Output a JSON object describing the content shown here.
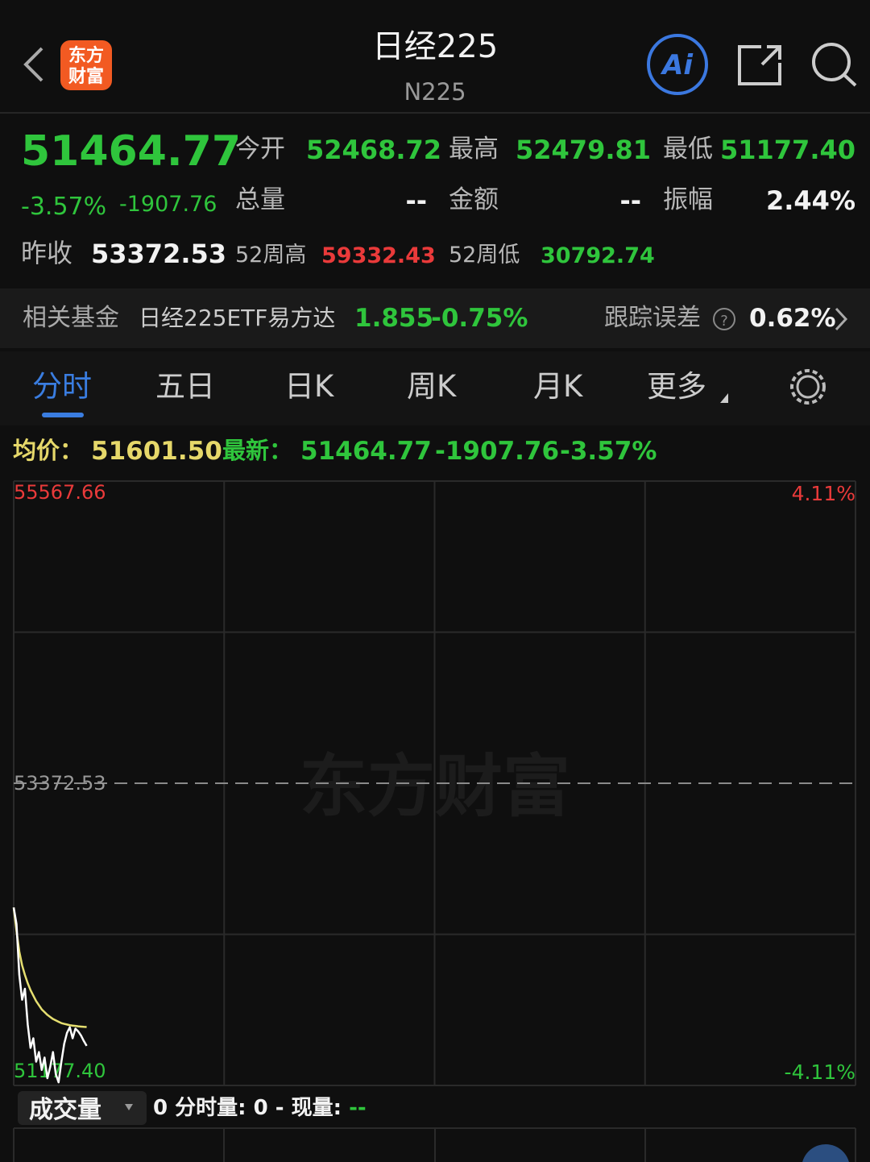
{
  "header": {
    "title": "日经225",
    "code": "N225",
    "logo": [
      "东方",
      "财富"
    ]
  },
  "quote": {
    "price": "51464.77",
    "change_pct": "-3.57%",
    "change": "-1907.76",
    "open_label": "今开",
    "open": "52468.72",
    "high_label": "最高",
    "high": "52479.81",
    "low_label": "最低",
    "low": "51177.40",
    "volume_label": "总量",
    "volume": "--",
    "amount_label": "金额",
    "amount": "--",
    "amplitude_label": "振幅",
    "amplitude": "2.44%",
    "prev_close_label": "昨收",
    "prev_close": "53372.53",
    "high52_label": "52周高",
    "high52": "59332.43",
    "low52_label": "52周低",
    "low52": "30792.74"
  },
  "fund": {
    "label": "相关基金",
    "name": "日经225ETF易方达",
    "price": "1.855",
    "change": "-0.75%",
    "tracking_label": "跟踪误差",
    "help": "?",
    "tracking": "0.62%"
  },
  "tabs": [
    "分时",
    "五日",
    "日K",
    "周K",
    "月K",
    "更多"
  ],
  "chart_info": {
    "avg_label": "均价：",
    "avg": "51601.50",
    "last_label": "最新：",
    "last": "51464.77",
    "change": "-1907.76",
    "change_pct": "-3.57%"
  },
  "watermark": "东方财富",
  "chart_data": {
    "type": "line",
    "x": [
      0,
      1,
      2,
      3,
      4,
      5,
      6,
      7,
      8,
      9,
      10,
      11,
      12,
      13,
      14,
      15,
      16,
      17,
      18,
      19,
      20,
      21,
      22,
      23,
      24,
      25,
      26
    ],
    "xlim": [
      0,
      300
    ],
    "ylim": [
      51177.4,
      55567.66
    ],
    "yticks": [
      {
        "value": 51177.4,
        "label": "51177.40"
      },
      53372.53,
      55567.66
    ],
    "y2lim": [
      -4.11,
      4.11
    ],
    "y2ticks": [
      {
        "value": 4.11,
        "label": "4.11%"
      },
      {
        "value": -4.11,
        "label": "-4.11%"
      }
    ],
    "grid": true,
    "series": [
      {
        "name": "price",
        "color": "#ffffff",
        "values": [
          52470,
          52350,
          51980,
          51800,
          51880,
          51620,
          51450,
          51520,
          51350,
          51420,
          51290,
          51380,
          51230,
          51310,
          51420,
          51260,
          51200,
          51350,
          51480,
          51560,
          51600,
          51520,
          51590,
          51570,
          51540,
          51500,
          51464.77
        ]
      },
      {
        "name": "average",
        "color": "#e6df70",
        "values": [
          52470,
          52300,
          52150,
          52050,
          51980,
          51920,
          51870,
          51830,
          51790,
          51760,
          51730,
          51710,
          51690,
          51675,
          51660,
          51650,
          51640,
          51630,
          51625,
          51620,
          51615,
          51612,
          51610,
          51607,
          51605,
          51603,
          51601.5
        ]
      }
    ]
  },
  "volume": {
    "label": "成交量",
    "value": "0",
    "minute_label": "分时量:",
    "minute_value": "0",
    "sep": "-",
    "now_label": "现量:",
    "now_value": "--"
  }
}
